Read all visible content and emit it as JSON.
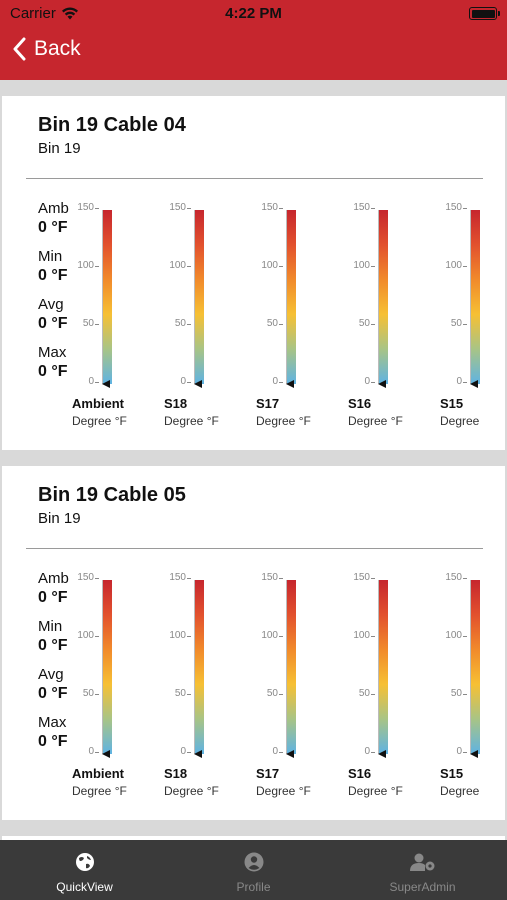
{
  "status": {
    "carrier": "Carrier",
    "time": "4:22 PM"
  },
  "nav": {
    "back_label": "Back"
  },
  "cards": [
    {
      "title": "Bin 19 Cable 04",
      "subtitle": "Bin 19",
      "stats": [
        {
          "label": "Amb",
          "value": "0 °F"
        },
        {
          "label": "Min",
          "value": "0 °F"
        },
        {
          "label": "Avg",
          "value": "0 °F"
        },
        {
          "label": "Max",
          "value": "0 °F"
        }
      ],
      "ticks": [
        "150",
        "100",
        "50",
        "0"
      ],
      "gauges": [
        {
          "name": "Ambient",
          "unit": "Degree °F",
          "value": 0
        },
        {
          "name": "S18",
          "unit": "Degree °F",
          "value": 0
        },
        {
          "name": "S17",
          "unit": "Degree °F",
          "value": 0
        },
        {
          "name": "S16",
          "unit": "Degree °F",
          "value": 0
        },
        {
          "name": "S15",
          "unit": "Degree °F",
          "value": 0
        }
      ]
    },
    {
      "title": "Bin 19 Cable 05",
      "subtitle": "Bin 19",
      "stats": [
        {
          "label": "Amb",
          "value": "0 °F"
        },
        {
          "label": "Min",
          "value": "0 °F"
        },
        {
          "label": "Avg",
          "value": "0 °F"
        },
        {
          "label": "Max",
          "value": "0 °F"
        }
      ],
      "ticks": [
        "150",
        "100",
        "50",
        "0"
      ],
      "gauges": [
        {
          "name": "Ambient",
          "unit": "Degree °F",
          "value": 0
        },
        {
          "name": "S18",
          "unit": "Degree °F",
          "value": 0
        },
        {
          "name": "S17",
          "unit": "Degree °F",
          "value": 0
        },
        {
          "name": "S16",
          "unit": "Degree °F",
          "value": 0
        },
        {
          "name": "S15",
          "unit": "Degree °F",
          "value": 0
        }
      ]
    }
  ],
  "tabs": [
    {
      "label": "QuickView",
      "icon": "globe-icon",
      "active": true
    },
    {
      "label": "Profile",
      "icon": "user-icon",
      "active": false
    },
    {
      "label": "SuperAdmin",
      "icon": "admin-gear-icon",
      "active": false
    }
  ],
  "colors": {
    "brand": "#c6262e",
    "tabbar": "#3a3a3a"
  }
}
